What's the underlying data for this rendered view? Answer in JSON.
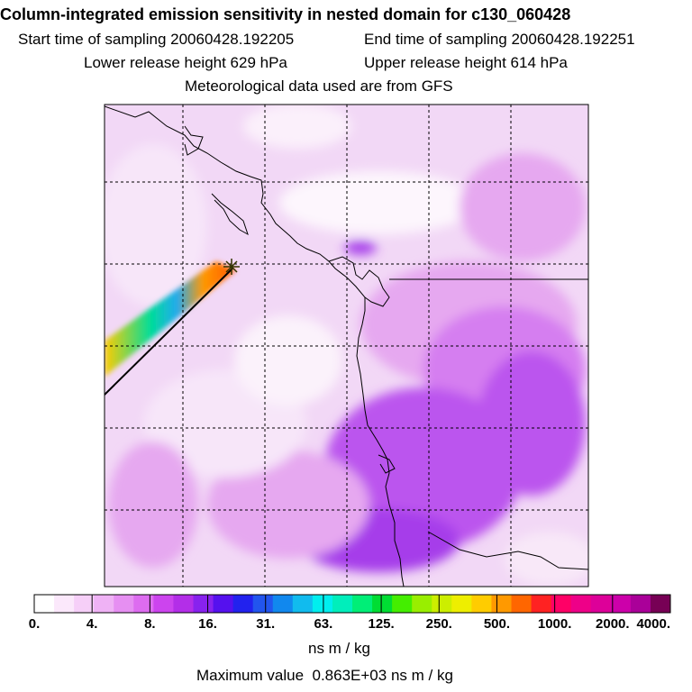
{
  "header": {
    "title": "Column-integrated emission sensitivity in nested domain for c130_060428",
    "start_time": "Start time of sampling 20060428.192205",
    "end_time": "End time of sampling 20060428.192251",
    "lower_height": "Lower release height  629 hPa",
    "upper_height": "Upper release height  614 hPa",
    "met_source": "Meteorological data used are from GFS"
  },
  "map": {
    "colors": {
      "ocean_base": "#f2d8f6",
      "light": "#f7e6f9",
      "mid": "#e6a8f0",
      "strong": "#d57ef0",
      "deep": "#bb55ee",
      "core": "#a63cea",
      "coast": "#000000",
      "grid": "#000000",
      "source_marker": "#333300"
    }
  },
  "colorbar": {
    "colors": [
      "#ffffff",
      "#fbe8fb",
      "#f6cff8",
      "#efb2f5",
      "#e68ff2",
      "#dd6cf0",
      "#cc44ee",
      "#b32ee8",
      "#8822ee",
      "#5511ee",
      "#2222ee",
      "#2255ee",
      "#1188ee",
      "#11bbee",
      "#00eeee",
      "#00eebb",
      "#00ee77",
      "#00dd33",
      "#44ee00",
      "#99ee00",
      "#ccee00",
      "#eeee00",
      "#ffcc00",
      "#ff9900",
      "#ff6600",
      "#ff2222",
      "#ff0066",
      "#ee0088",
      "#dd0099",
      "#cc00aa",
      "#aa0099",
      "#770055"
    ],
    "tick_labels": [
      "0.",
      "4.",
      "8.",
      "16.",
      "31.",
      "63.",
      "125.",
      "250.",
      "500.",
      "1000.",
      "2000.",
      "4000."
    ],
    "units": "ns m / kg"
  },
  "footer": {
    "max_label": "Maximum value ",
    "max_value": "0.863E+03",
    "max_units": "ns m / kg"
  }
}
